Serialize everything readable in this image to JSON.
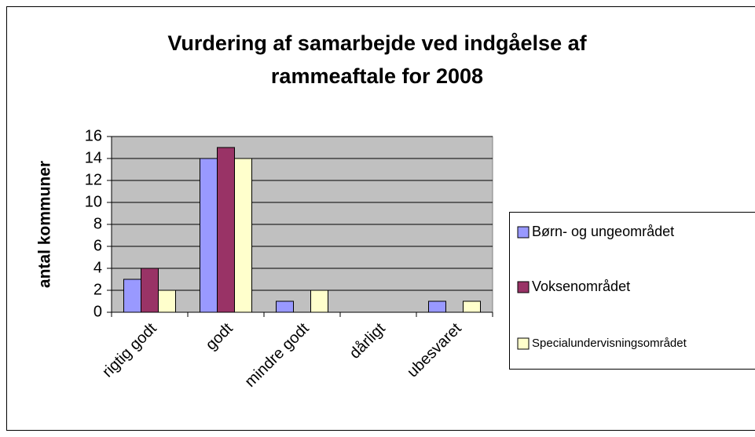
{
  "chart_data": {
    "type": "bar",
    "title": "Vurdering af samarbejde ved indgåelse af rammeaftale for 2008",
    "ylabel": "antal kommuner",
    "categories": [
      "rigtig godt",
      "godt",
      "mindre godt",
      "dårligt",
      "ubesvaret"
    ],
    "series": [
      {
        "name": "Børn- og ungeområdet",
        "color": "#9999ff",
        "values": [
          3,
          14,
          1,
          0,
          1
        ]
      },
      {
        "name": "Voksenområdet",
        "color": "#993366",
        "values": [
          4,
          15,
          0,
          0,
          0
        ]
      },
      {
        "name": "Specialundervisningsområdet",
        "color": "#ffffcc",
        "values": [
          2,
          14,
          2,
          0,
          1
        ]
      }
    ],
    "ylim": [
      0,
      16
    ],
    "yticks": [
      0,
      2,
      4,
      6,
      8,
      10,
      12,
      14,
      16
    ],
    "grid": true,
    "legend": "right"
  }
}
